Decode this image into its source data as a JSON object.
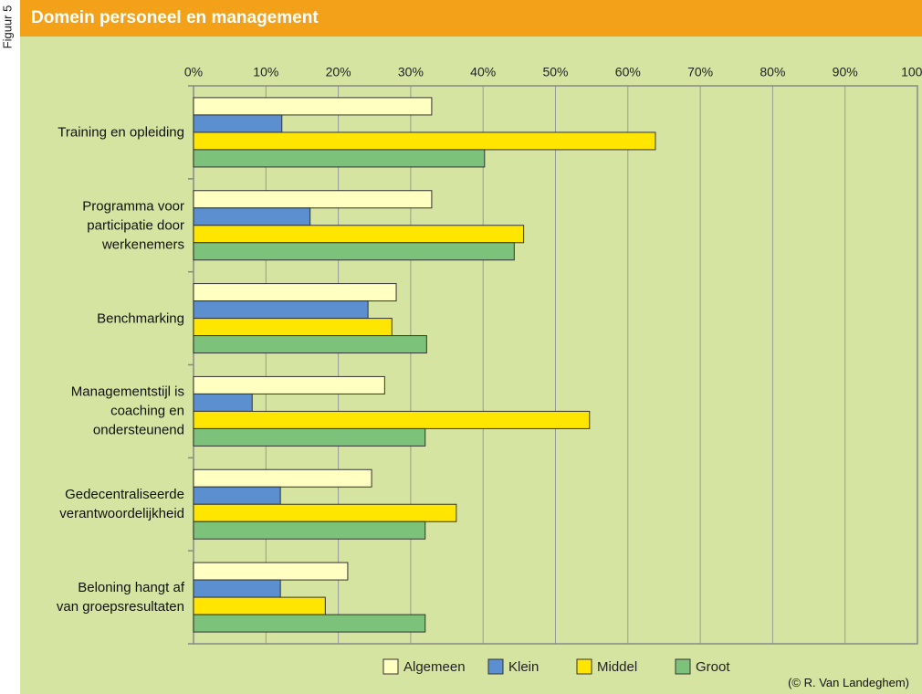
{
  "side_label": "Figuur 5",
  "chart_data": {
    "type": "hbar",
    "title": "Domein personeel en management",
    "categories": [
      "Training en opleiding",
      "Programma voor\nparticipatie door\nwerkenemers",
      "Benchmarking",
      "Managementstijl is\ncoaching en\nondersteunend",
      "Gedecentraliseerde\nverantwoordelijkheid",
      "Beloning hangt af\nvan groepsresultaten"
    ],
    "series": [
      {
        "name": "Algemeen",
        "color": "#ffffc2",
        "values": [
          32.9,
          32.9,
          28.0,
          26.4,
          24.6,
          21.3
        ]
      },
      {
        "name": "Klein",
        "color": "#5b8fd0",
        "values": [
          12.2,
          16.1,
          24.1,
          8.1,
          12.0,
          12.0
        ]
      },
      {
        "name": "Middel",
        "color": "#ffe600",
        "values": [
          63.8,
          45.6,
          27.4,
          54.7,
          36.3,
          18.2
        ]
      },
      {
        "name": "Groot",
        "color": "#7dc27a",
        "values": [
          40.2,
          44.3,
          32.2,
          32.0,
          32.0,
          32.0
        ]
      }
    ],
    "xlim": [
      0,
      100
    ],
    "xticks": [
      {
        "value": 0,
        "label": "0%"
      },
      {
        "value": 10,
        "label": "10%"
      },
      {
        "value": 20,
        "label": "20%"
      },
      {
        "value": 30,
        "label": "30%"
      },
      {
        "value": 40,
        "label": "40%"
      },
      {
        "value": 50,
        "label": "50%"
      },
      {
        "value": 60,
        "label": "60%"
      },
      {
        "value": 70,
        "label": "70%"
      },
      {
        "value": 80,
        "label": "80%"
      },
      {
        "value": 90,
        "label": "90%"
      },
      {
        "value": 100,
        "label": "100%"
      }
    ],
    "grid": true,
    "credit": "(© R. Van Landeghem)"
  }
}
